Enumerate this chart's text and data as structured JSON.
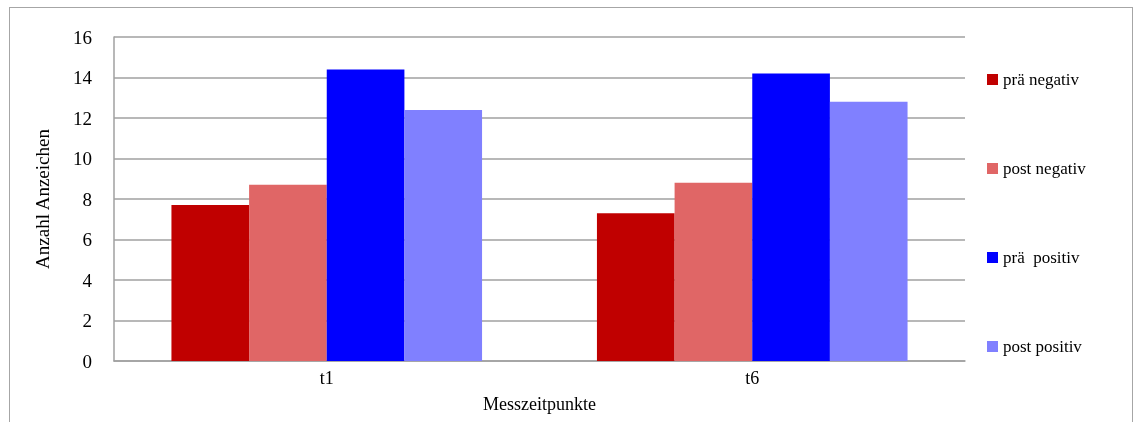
{
  "chart_data": {
    "type": "bar",
    "xlabel": "Messzeitpunkte",
    "ylabel": "Anzahl Anzeichen",
    "categories": [
      "t1",
      "t6"
    ],
    "series": [
      {
        "name": "prä negativ",
        "color": "#c00000",
        "values": [
          7.7,
          7.3
        ]
      },
      {
        "name": "post negativ",
        "color": "#e06666",
        "values": [
          8.7,
          8.8
        ]
      },
      {
        "name": "prä  positiv",
        "color": "#0000ff",
        "values": [
          14.4,
          14.2
        ]
      },
      {
        "name": "post positiv",
        "color": "#8080ff",
        "values": [
          12.4,
          12.8
        ]
      }
    ],
    "ylim": [
      0,
      16
    ],
    "yticks": [
      0,
      2,
      4,
      6,
      8,
      10,
      12,
      14,
      16
    ],
    "grid": "y",
    "legend": "right"
  }
}
